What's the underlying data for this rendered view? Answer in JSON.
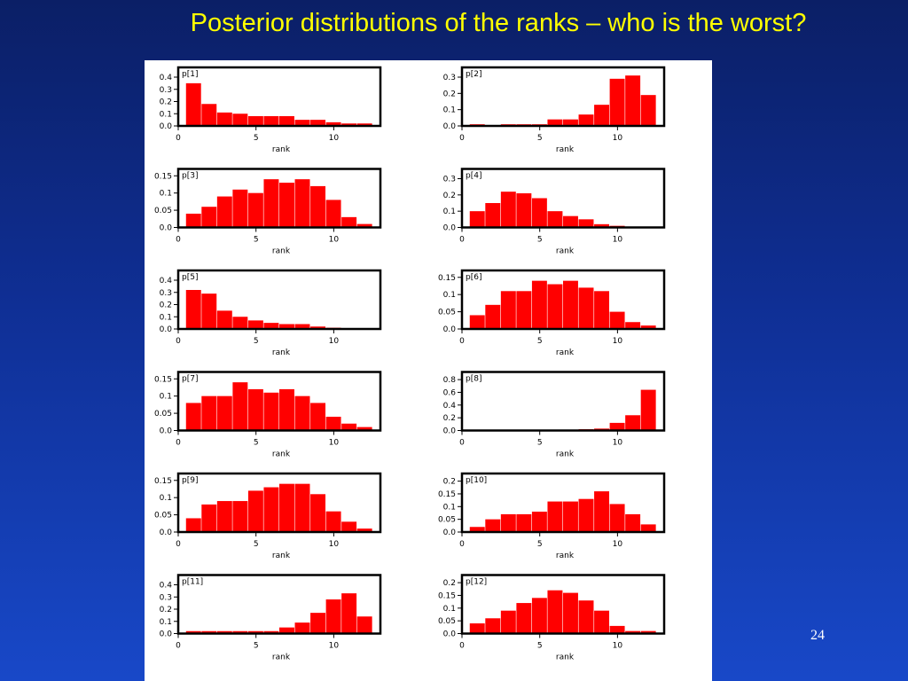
{
  "slide": {
    "title": "Posterior distributions of the ranks – who is the worst?",
    "page_number": "24",
    "title_color": "#ffff00",
    "background_color": "#0f2f95"
  },
  "chart_data": [
    {
      "type": "bar",
      "title": "p[1]",
      "xlabel": "rank",
      "categories": [
        1,
        2,
        3,
        4,
        5,
        6,
        7,
        8,
        9,
        10,
        11,
        12
      ],
      "values": [
        0.35,
        0.18,
        0.11,
        0.1,
        0.08,
        0.08,
        0.08,
        0.05,
        0.05,
        0.03,
        0.02,
        0.02
      ],
      "xlim": [
        0,
        13
      ],
      "ylim": [
        0,
        0.48
      ],
      "xticks": [
        0,
        5,
        10
      ],
      "yticks": [
        "0.0",
        "0.1",
        "0.2",
        "0.3",
        "0.4"
      ],
      "ytick_values": [
        0,
        0.1,
        0.2,
        0.3,
        0.4
      ],
      "bar_color": "#ff0000"
    },
    {
      "type": "bar",
      "title": "p[2]",
      "xlabel": "rank",
      "categories": [
        1,
        2,
        3,
        4,
        5,
        6,
        7,
        8,
        9,
        10,
        11,
        12
      ],
      "values": [
        0.01,
        0.0,
        0.01,
        0.01,
        0.01,
        0.04,
        0.04,
        0.07,
        0.13,
        0.29,
        0.31,
        0.19
      ],
      "xlim": [
        0,
        13
      ],
      "ylim": [
        0,
        0.36
      ],
      "xticks": [
        0,
        5,
        10
      ],
      "yticks": [
        "0.0",
        "0.1",
        "0.2",
        "0.3"
      ],
      "ytick_values": [
        0,
        0.1,
        0.2,
        0.3
      ],
      "bar_color": "#ff0000"
    },
    {
      "type": "bar",
      "title": "p[3]",
      "xlabel": "rank",
      "categories": [
        1,
        2,
        3,
        4,
        5,
        6,
        7,
        8,
        9,
        10,
        11,
        12
      ],
      "values": [
        0.04,
        0.06,
        0.09,
        0.11,
        0.1,
        0.14,
        0.13,
        0.14,
        0.12,
        0.08,
        0.03,
        0.01
      ],
      "xlim": [
        0,
        13
      ],
      "ylim": [
        0,
        0.17
      ],
      "xticks": [
        0,
        5,
        10
      ],
      "yticks": [
        "0.0",
        "0.05",
        "0.1",
        "0.15"
      ],
      "ytick_values": [
        0,
        0.05,
        0.1,
        0.15
      ],
      "bar_color": "#ff0000"
    },
    {
      "type": "bar",
      "title": "p[4]",
      "xlabel": "rank",
      "categories": [
        1,
        2,
        3,
        4,
        5,
        6,
        7,
        8,
        9,
        10,
        11,
        12
      ],
      "values": [
        0.1,
        0.15,
        0.22,
        0.21,
        0.18,
        0.1,
        0.07,
        0.05,
        0.02,
        0.01,
        0.0,
        0.0
      ],
      "xlim": [
        0,
        13
      ],
      "ylim": [
        0,
        0.36
      ],
      "xticks": [
        0,
        5,
        10
      ],
      "yticks": [
        "0.0",
        "0.1",
        "0.2",
        "0.3"
      ],
      "ytick_values": [
        0,
        0.1,
        0.2,
        0.3
      ],
      "bar_color": "#ff0000"
    },
    {
      "type": "bar",
      "title": "p[5]",
      "xlabel": "rank",
      "categories": [
        1,
        2,
        3,
        4,
        5,
        6,
        7,
        8,
        9,
        10,
        11,
        12
      ],
      "values": [
        0.32,
        0.29,
        0.15,
        0.1,
        0.07,
        0.05,
        0.04,
        0.04,
        0.02,
        0.01,
        0.0,
        0.0
      ],
      "xlim": [
        0,
        13
      ],
      "ylim": [
        0,
        0.48
      ],
      "xticks": [
        0,
        5,
        10
      ],
      "yticks": [
        "0.0",
        "0.1",
        "0.2",
        "0.3",
        "0.4"
      ],
      "ytick_values": [
        0,
        0.1,
        0.2,
        0.3,
        0.4
      ],
      "bar_color": "#ff0000"
    },
    {
      "type": "bar",
      "title": "p[6]",
      "xlabel": "rank",
      "categories": [
        1,
        2,
        3,
        4,
        5,
        6,
        7,
        8,
        9,
        10,
        11,
        12
      ],
      "values": [
        0.04,
        0.07,
        0.11,
        0.11,
        0.14,
        0.13,
        0.14,
        0.12,
        0.11,
        0.05,
        0.02,
        0.01
      ],
      "xlim": [
        0,
        13
      ],
      "ylim": [
        0,
        0.17
      ],
      "xticks": [
        0,
        5,
        10
      ],
      "yticks": [
        "0.0",
        "0.05",
        "0.1",
        "0.15"
      ],
      "ytick_values": [
        0,
        0.05,
        0.1,
        0.15
      ],
      "bar_color": "#ff0000"
    },
    {
      "type": "bar",
      "title": "p[7]",
      "xlabel": "rank",
      "categories": [
        1,
        2,
        3,
        4,
        5,
        6,
        7,
        8,
        9,
        10,
        11,
        12
      ],
      "values": [
        0.08,
        0.1,
        0.1,
        0.14,
        0.12,
        0.11,
        0.12,
        0.1,
        0.08,
        0.04,
        0.02,
        0.01
      ],
      "xlim": [
        0,
        13
      ],
      "ylim": [
        0,
        0.17
      ],
      "xticks": [
        0,
        5,
        10
      ],
      "yticks": [
        "0.0",
        "0.05",
        "0.1",
        "0.15"
      ],
      "ytick_values": [
        0,
        0.05,
        0.1,
        0.15
      ],
      "bar_color": "#ff0000"
    },
    {
      "type": "bar",
      "title": "p[8]",
      "xlabel": "rank",
      "categories": [
        1,
        2,
        3,
        4,
        5,
        6,
        7,
        8,
        9,
        10,
        11,
        12
      ],
      "values": [
        0.0,
        0.0,
        0.0,
        0.0,
        0.01,
        0.01,
        0.01,
        0.02,
        0.03,
        0.12,
        0.24,
        0.64
      ],
      "xlim": [
        0,
        13
      ],
      "ylim": [
        0,
        0.92
      ],
      "xticks": [
        0,
        5,
        10
      ],
      "yticks": [
        "0.0",
        "0.2",
        "0.4",
        "0.6",
        "0.8"
      ],
      "ytick_values": [
        0,
        0.2,
        0.4,
        0.6,
        0.8
      ],
      "bar_color": "#ff0000"
    },
    {
      "type": "bar",
      "title": "p[9]",
      "xlabel": "rank",
      "categories": [
        1,
        2,
        3,
        4,
        5,
        6,
        7,
        8,
        9,
        10,
        11,
        12
      ],
      "values": [
        0.04,
        0.08,
        0.09,
        0.09,
        0.12,
        0.13,
        0.14,
        0.14,
        0.11,
        0.06,
        0.03,
        0.01
      ],
      "xlim": [
        0,
        13
      ],
      "ylim": [
        0,
        0.17
      ],
      "xticks": [
        0,
        5,
        10
      ],
      "yticks": [
        "0.0",
        "0.05",
        "0.1",
        "0.15"
      ],
      "ytick_values": [
        0,
        0.05,
        0.1,
        0.15
      ],
      "bar_color": "#ff0000"
    },
    {
      "type": "bar",
      "title": "p[10]",
      "xlabel": "rank",
      "categories": [
        1,
        2,
        3,
        4,
        5,
        6,
        7,
        8,
        9,
        10,
        11,
        12
      ],
      "values": [
        0.02,
        0.05,
        0.07,
        0.07,
        0.08,
        0.12,
        0.12,
        0.13,
        0.16,
        0.11,
        0.07,
        0.03
      ],
      "xlim": [
        0,
        13
      ],
      "ylim": [
        0,
        0.23
      ],
      "xticks": [
        0,
        5,
        10
      ],
      "yticks": [
        "0.0",
        "0.05",
        "0.1",
        "0.15",
        "0.2"
      ],
      "ytick_values": [
        0,
        0.05,
        0.1,
        0.15,
        0.2
      ],
      "bar_color": "#ff0000"
    },
    {
      "type": "bar",
      "title": "p[11]",
      "xlabel": "rank",
      "categories": [
        1,
        2,
        3,
        4,
        5,
        6,
        7,
        8,
        9,
        10,
        11,
        12
      ],
      "values": [
        0.02,
        0.02,
        0.02,
        0.02,
        0.02,
        0.02,
        0.05,
        0.09,
        0.17,
        0.28,
        0.33,
        0.14
      ],
      "xlim": [
        0,
        13
      ],
      "ylim": [
        0,
        0.48
      ],
      "xticks": [
        0,
        5,
        10
      ],
      "yticks": [
        "0.0",
        "0.1",
        "0.2",
        "0.3",
        "0.4"
      ],
      "ytick_values": [
        0,
        0.1,
        0.2,
        0.3,
        0.4
      ],
      "bar_color": "#ff0000"
    },
    {
      "type": "bar",
      "title": "p[12]",
      "xlabel": "rank",
      "categories": [
        1,
        2,
        3,
        4,
        5,
        6,
        7,
        8,
        9,
        10,
        11,
        12
      ],
      "values": [
        0.04,
        0.06,
        0.09,
        0.12,
        0.14,
        0.17,
        0.16,
        0.13,
        0.09,
        0.03,
        0.01,
        0.01
      ],
      "xlim": [
        0,
        13
      ],
      "ylim": [
        0,
        0.23
      ],
      "xticks": [
        0,
        5,
        10
      ],
      "yticks": [
        "0.0",
        "0.05",
        "0.1",
        "0.15",
        "0.2"
      ],
      "ytick_values": [
        0,
        0.05,
        0.1,
        0.15,
        0.2
      ],
      "bar_color": "#ff0000"
    }
  ]
}
